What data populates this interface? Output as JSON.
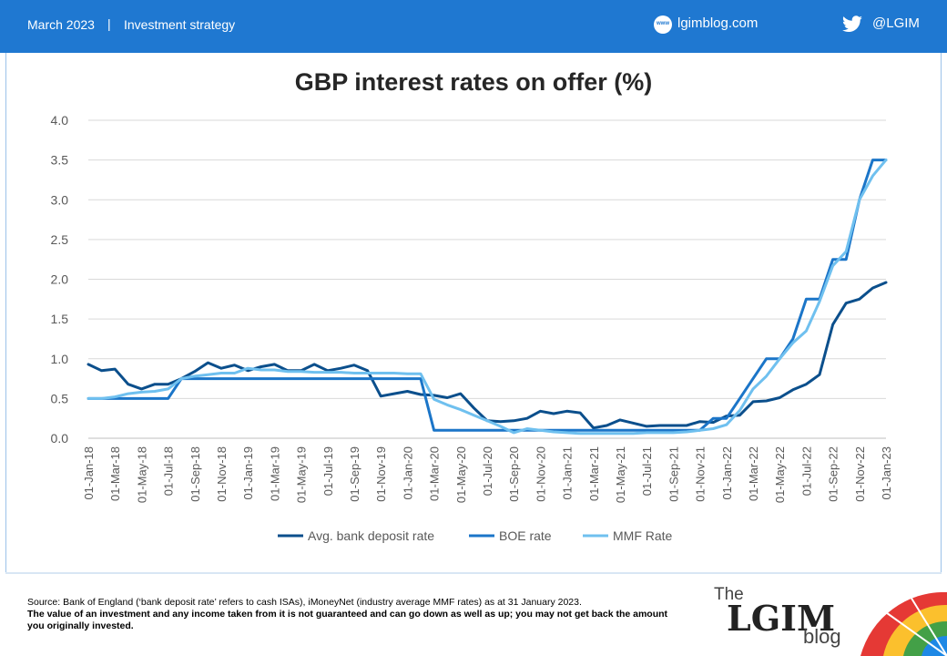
{
  "header": {
    "date": "March 2023",
    "separator": "|",
    "section": "Investment strategy",
    "site_icon_text": "www",
    "site": "lgimblog.com",
    "twitter_handle": "@LGIM",
    "bar_color": "#1f78d1"
  },
  "chart_data": {
    "type": "line",
    "title": "GBP interest rates on offer (%)",
    "x": [
      "2018-01",
      "2018-02",
      "2018-03",
      "2018-04",
      "2018-05",
      "2018-06",
      "2018-07",
      "2018-08",
      "2018-09",
      "2018-10",
      "2018-11",
      "2018-12",
      "2019-01",
      "2019-02",
      "2019-03",
      "2019-04",
      "2019-05",
      "2019-06",
      "2019-07",
      "2019-08",
      "2019-09",
      "2019-10",
      "2019-11",
      "2019-12",
      "2020-01",
      "2020-02",
      "2020-03",
      "2020-04",
      "2020-05",
      "2020-06",
      "2020-07",
      "2020-08",
      "2020-09",
      "2020-10",
      "2020-11",
      "2020-12",
      "2021-01",
      "2021-02",
      "2021-03",
      "2021-04",
      "2021-05",
      "2021-06",
      "2021-07",
      "2021-08",
      "2021-09",
      "2021-10",
      "2021-11",
      "2021-12",
      "2022-01",
      "2022-02",
      "2022-03",
      "2022-04",
      "2022-05",
      "2022-06",
      "2022-07",
      "2022-08",
      "2022-09",
      "2022-10",
      "2022-11",
      "2022-12",
      "2023-01"
    ],
    "x_tick_labels": [
      "01-Jan-18",
      "01-Mar-18",
      "01-May-18",
      "01-Jul-18",
      "01-Sep-18",
      "01-Nov-18",
      "01-Jan-19",
      "01-Mar-19",
      "01-May-19",
      "01-Jul-19",
      "01-Sep-19",
      "01-Nov-19",
      "01-Jan-20",
      "01-Mar-20",
      "01-May-20",
      "01-Jul-20",
      "01-Sep-20",
      "01-Nov-20",
      "01-Jan-21",
      "01-Mar-21",
      "01-May-21",
      "01-Jul-21",
      "01-Sep-21",
      "01-Nov-21",
      "01-Jan-22",
      "01-Mar-22",
      "01-May-22",
      "01-Jul-22",
      "01-Sep-22",
      "01-Nov-22",
      "01-Jan-23"
    ],
    "y_ticks": [
      "0.0",
      "0.5",
      "1.0",
      "1.5",
      "2.0",
      "2.5",
      "3.0",
      "3.5",
      "4.0"
    ],
    "ylim": [
      0,
      4
    ],
    "grid": true,
    "legend_position": "bottom",
    "series": [
      {
        "name": "Avg. bank deposit rate",
        "color": "#0b4f8c",
        "values": [
          0.93,
          0.85,
          0.87,
          0.68,
          0.62,
          0.68,
          0.68,
          0.75,
          0.84,
          0.95,
          0.88,
          0.92,
          0.85,
          0.9,
          0.93,
          0.85,
          0.85,
          0.93,
          0.85,
          0.88,
          0.92,
          0.85,
          0.53,
          0.56,
          0.59,
          0.55,
          0.54,
          0.51,
          0.56,
          0.38,
          0.22,
          0.21,
          0.22,
          0.25,
          0.34,
          0.31,
          0.34,
          0.32,
          0.13,
          0.16,
          0.23,
          0.19,
          0.15,
          0.16,
          0.16,
          0.16,
          0.21,
          0.2,
          0.28,
          0.29,
          0.46,
          0.47,
          0.51,
          0.61,
          0.68,
          0.8,
          1.43,
          1.7,
          1.75,
          1.89,
          1.96
        ]
      },
      {
        "name": "BOE rate",
        "color": "#1b75c8",
        "values": [
          0.5,
          0.5,
          0.5,
          0.5,
          0.5,
          0.5,
          0.5,
          0.75,
          0.75,
          0.75,
          0.75,
          0.75,
          0.75,
          0.75,
          0.75,
          0.75,
          0.75,
          0.75,
          0.75,
          0.75,
          0.75,
          0.75,
          0.75,
          0.75,
          0.75,
          0.75,
          0.1,
          0.1,
          0.1,
          0.1,
          0.1,
          0.1,
          0.1,
          0.1,
          0.1,
          0.1,
          0.1,
          0.1,
          0.1,
          0.1,
          0.1,
          0.1,
          0.1,
          0.1,
          0.1,
          0.1,
          0.1,
          0.25,
          0.25,
          0.5,
          0.75,
          1.0,
          1.0,
          1.25,
          1.75,
          1.75,
          2.25,
          2.25,
          3.0,
          3.5,
          3.5
        ]
      },
      {
        "name": "MMF Rate",
        "color": "#6fc0ef",
        "values": [
          0.5,
          0.5,
          0.52,
          0.56,
          0.58,
          0.59,
          0.62,
          0.75,
          0.78,
          0.8,
          0.82,
          0.82,
          0.88,
          0.86,
          0.86,
          0.84,
          0.84,
          0.83,
          0.83,
          0.83,
          0.82,
          0.82,
          0.82,
          0.82,
          0.81,
          0.81,
          0.49,
          0.42,
          0.36,
          0.29,
          0.22,
          0.15,
          0.07,
          0.12,
          0.1,
          0.08,
          0.07,
          0.06,
          0.06,
          0.06,
          0.06,
          0.06,
          0.07,
          0.07,
          0.07,
          0.08,
          0.1,
          0.12,
          0.17,
          0.35,
          0.62,
          0.78,
          1.0,
          1.2,
          1.35,
          1.72,
          2.17,
          2.35,
          3.0,
          3.3,
          3.5
        ]
      }
    ]
  },
  "footer": {
    "source": "Source: Bank of England (‘bank deposit rate’ refers to cash ISAs), iMoneyNet (industry average MMF  rates) as at 31 January 2023.",
    "disclaimer": "The value of an investment and any income taken from it is not guaranteed and can go down as well as up; you may not get back the amount you originally  invested."
  },
  "logo": {
    "the": "The",
    "lgim": "LGIM",
    "blog": "blog"
  }
}
